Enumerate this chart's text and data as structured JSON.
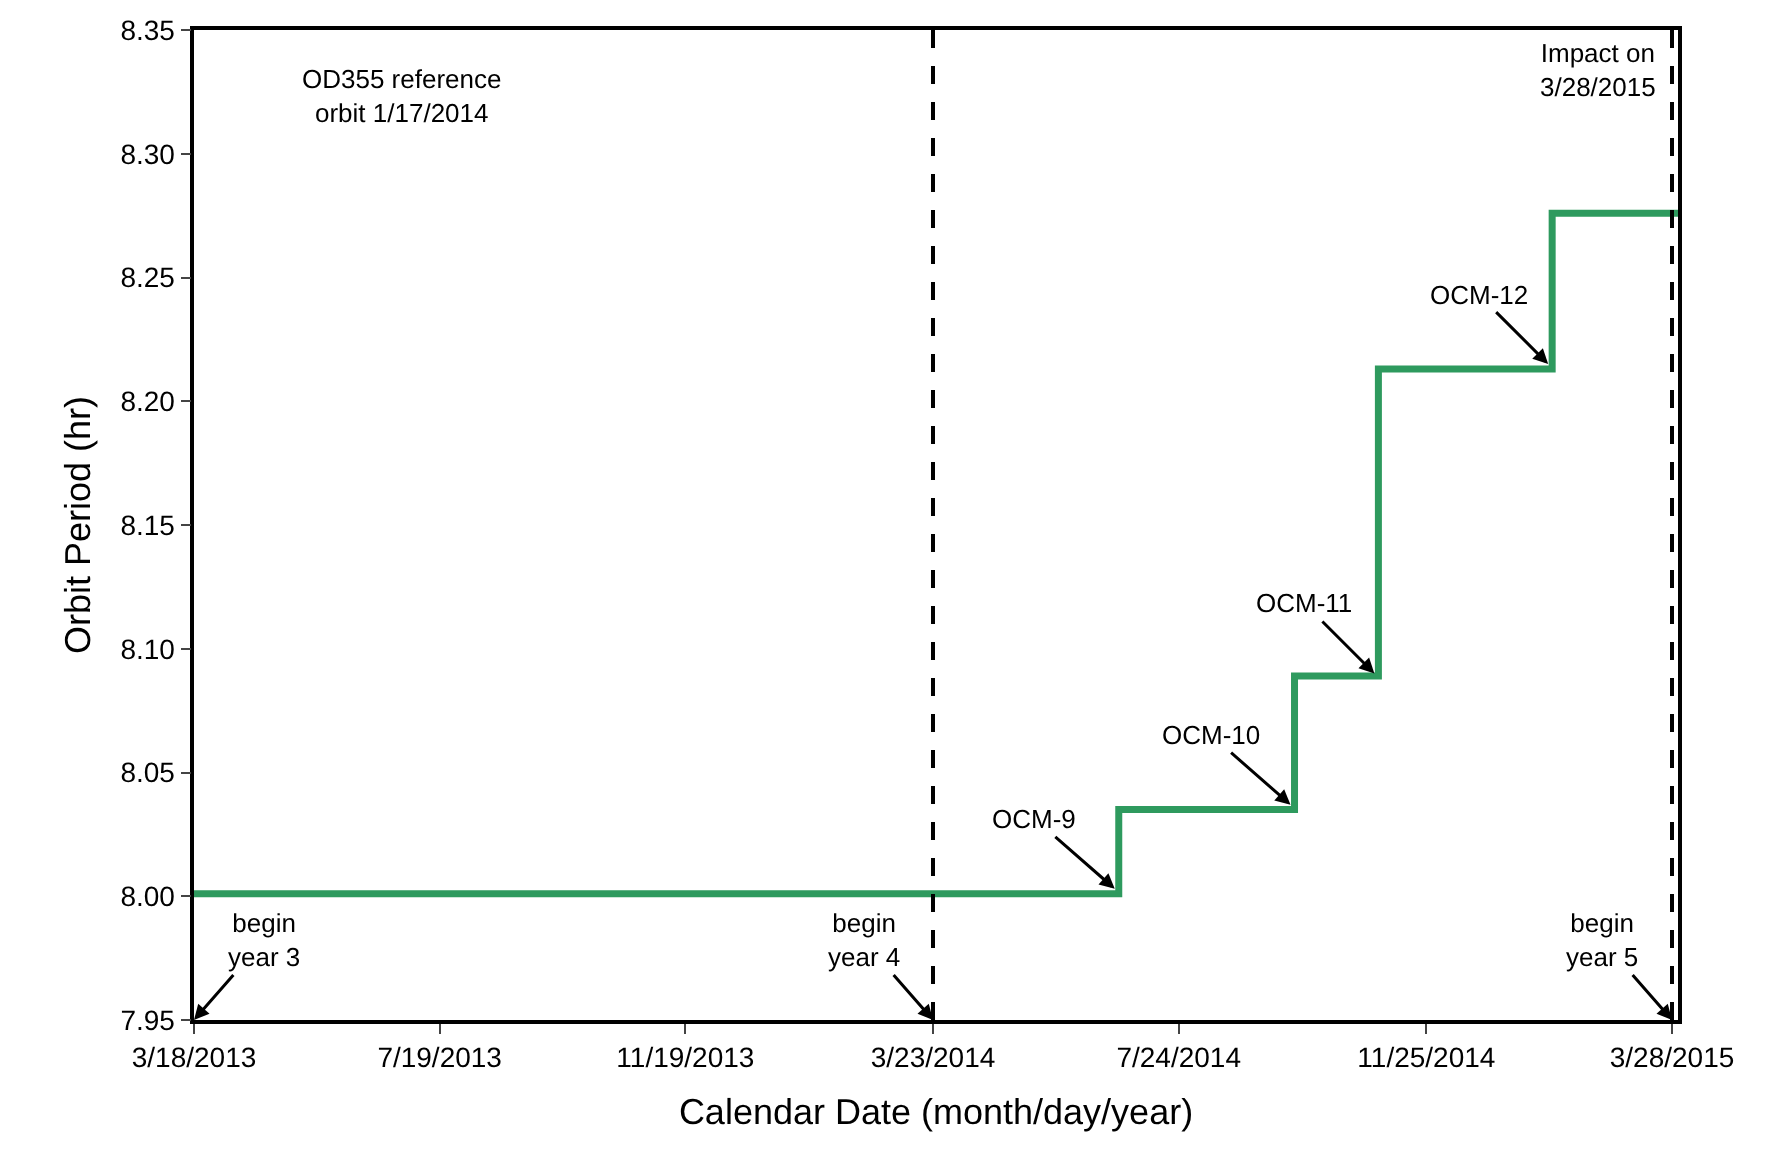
{
  "chart_data": {
    "type": "step",
    "xlabel": "Calendar Date (month/day/year)",
    "ylabel": "Orbit Period (hr)",
    "x": [
      "2013-03-18",
      "2014-06-24",
      "2014-09-20",
      "2014-11-01",
      "2015-01-27",
      "2015-03-31"
    ],
    "series": [
      {
        "color": "#2e9a5e",
        "values": [
          8.001,
          8.035,
          8.089,
          8.213,
          8.276,
          8.276
        ]
      }
    ],
    "xlim": [
      "2013-03-18",
      "2015-03-31"
    ],
    "xticks": [
      {
        "value": "2013-03-18",
        "label": "3/18/2013"
      },
      {
        "value": "2013-07-19",
        "label": "7/19/2013"
      },
      {
        "value": "2013-11-19",
        "label": "11/19/2013"
      },
      {
        "value": "2014-03-23",
        "label": "3/23/2014"
      },
      {
        "value": "2014-07-24",
        "label": "7/24/2014"
      },
      {
        "value": "2014-11-25",
        "label": "11/25/2014"
      },
      {
        "value": "2015-03-28",
        "label": "3/28/2015"
      }
    ],
    "ylim": [
      7.95,
      8.35
    ],
    "yticks": [
      {
        "value": 7.95,
        "label": "7.95"
      },
      {
        "value": 8.0,
        "label": "8.00"
      },
      {
        "value": 8.05,
        "label": "8.05"
      },
      {
        "value": 8.1,
        "label": "8.10"
      },
      {
        "value": 8.15,
        "label": "8.15"
      },
      {
        "value": 8.2,
        "label": "8.20"
      },
      {
        "value": 8.25,
        "label": "8.25"
      },
      {
        "value": 8.3,
        "label": "8.30"
      },
      {
        "value": 8.35,
        "label": "8.35"
      }
    ],
    "ref_lines": [
      {
        "axis": "x",
        "value": "2014-03-23",
        "color": "#000000",
        "line_style": "dashed"
      },
      {
        "axis": "x",
        "value": "2015-03-28",
        "label": "Impact on\n3/28/2015",
        "color": "#000000",
        "line_style": "dashed"
      }
    ],
    "annotations": [
      "OD355 reference\norbit 1/17/2014",
      "begin\nyear 3",
      {
        "text": "begin\nyear 4",
        "x": "2014-03-23",
        "y": 7.95
      },
      {
        "text": "begin\nyear 5",
        "x": "2015-03-28",
        "y": 7.95
      },
      {
        "text": "OCM-9",
        "x": "2014-06-22",
        "y": 8.003
      },
      {
        "text": "OCM-10",
        "x": "2014-09-18",
        "y": 8.037
      },
      {
        "text": "OCM-11",
        "x": "2014-10-30",
        "y": 8.09
      },
      {
        "text": "OCM-12",
        "x": "2015-01-25",
        "y": 8.215
      }
    ],
    "grid": false,
    "marker": "none",
    "line_style": "solid"
  }
}
